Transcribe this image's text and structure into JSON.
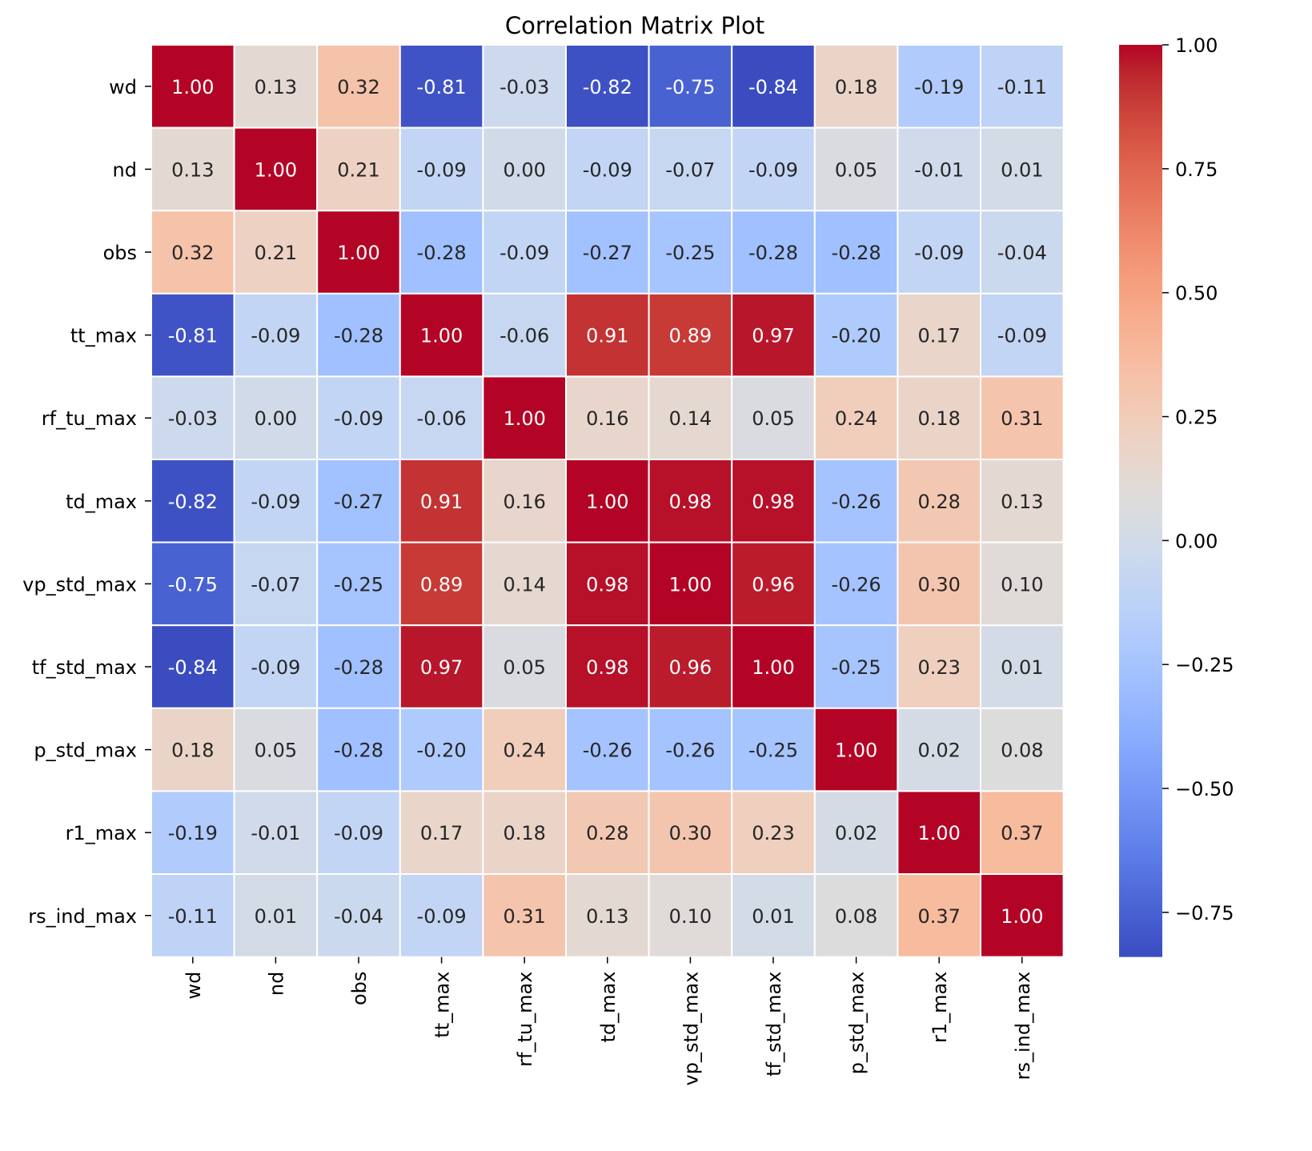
{
  "chart_data": {
    "type": "heatmap",
    "title": "Correlation Matrix Plot",
    "xlabel": "",
    "ylabel": "",
    "rows": [
      "wd",
      "nd",
      "obs",
      "tt_max",
      "rf_tu_max",
      "td_max",
      "vp_std_max",
      "tf_std_max",
      "p_std_max",
      "r1_max",
      "rs_ind_max"
    ],
    "columns": [
      "wd",
      "nd",
      "obs",
      "tt_max",
      "rf_tu_max",
      "td_max",
      "vp_std_max",
      "tf_std_max",
      "p_std_max",
      "r1_max",
      "rs_ind_max"
    ],
    "values": [
      [
        1.0,
        0.13,
        0.32,
        -0.81,
        -0.03,
        -0.82,
        -0.75,
        -0.84,
        0.18,
        -0.19,
        -0.11
      ],
      [
        0.13,
        1.0,
        0.21,
        -0.09,
        0.0,
        -0.09,
        -0.07,
        -0.09,
        0.05,
        -0.01,
        0.01
      ],
      [
        0.32,
        0.21,
        1.0,
        -0.28,
        -0.09,
        -0.27,
        -0.25,
        -0.28,
        -0.28,
        -0.09,
        -0.04
      ],
      [
        -0.81,
        -0.09,
        -0.28,
        1.0,
        -0.06,
        0.91,
        0.89,
        0.97,
        -0.2,
        0.17,
        -0.09
      ],
      [
        -0.03,
        0.0,
        -0.09,
        -0.06,
        1.0,
        0.16,
        0.14,
        0.05,
        0.24,
        0.18,
        0.31
      ],
      [
        -0.82,
        -0.09,
        -0.27,
        0.91,
        0.16,
        1.0,
        0.98,
        0.98,
        -0.26,
        0.28,
        0.13
      ],
      [
        -0.75,
        -0.07,
        -0.25,
        0.89,
        0.14,
        0.98,
        1.0,
        0.96,
        -0.26,
        0.3,
        0.1
      ],
      [
        -0.84,
        -0.09,
        -0.28,
        0.97,
        0.05,
        0.98,
        0.96,
        1.0,
        -0.25,
        0.23,
        0.01
      ],
      [
        0.18,
        0.05,
        -0.28,
        -0.2,
        0.24,
        -0.26,
        -0.26,
        -0.25,
        1.0,
        0.02,
        0.08
      ],
      [
        -0.19,
        -0.01,
        -0.09,
        0.17,
        0.18,
        0.28,
        0.3,
        0.23,
        0.02,
        1.0,
        0.37
      ],
      [
        -0.11,
        0.01,
        -0.04,
        -0.09,
        0.31,
        0.13,
        0.1,
        0.01,
        0.08,
        0.37,
        1.0
      ]
    ],
    "value_format": "2 decimals",
    "colormap": "coolwarm",
    "colorbar": {
      "range": [
        -0.84,
        1.0
      ],
      "ticks": [
        1.0,
        0.75,
        0.5,
        0.25,
        0.0,
        -0.25,
        -0.5,
        -0.75
      ],
      "tick_labels": [
        "1.00",
        "0.75",
        "0.50",
        "0.25",
        "0.00",
        "−0.25",
        "−0.50",
        "−0.75"
      ]
    },
    "colors": {
      "cold": "#3b4cc0",
      "neutral": "#dddddd",
      "hot": "#b40426",
      "cell_border": "#ffffff"
    }
  }
}
